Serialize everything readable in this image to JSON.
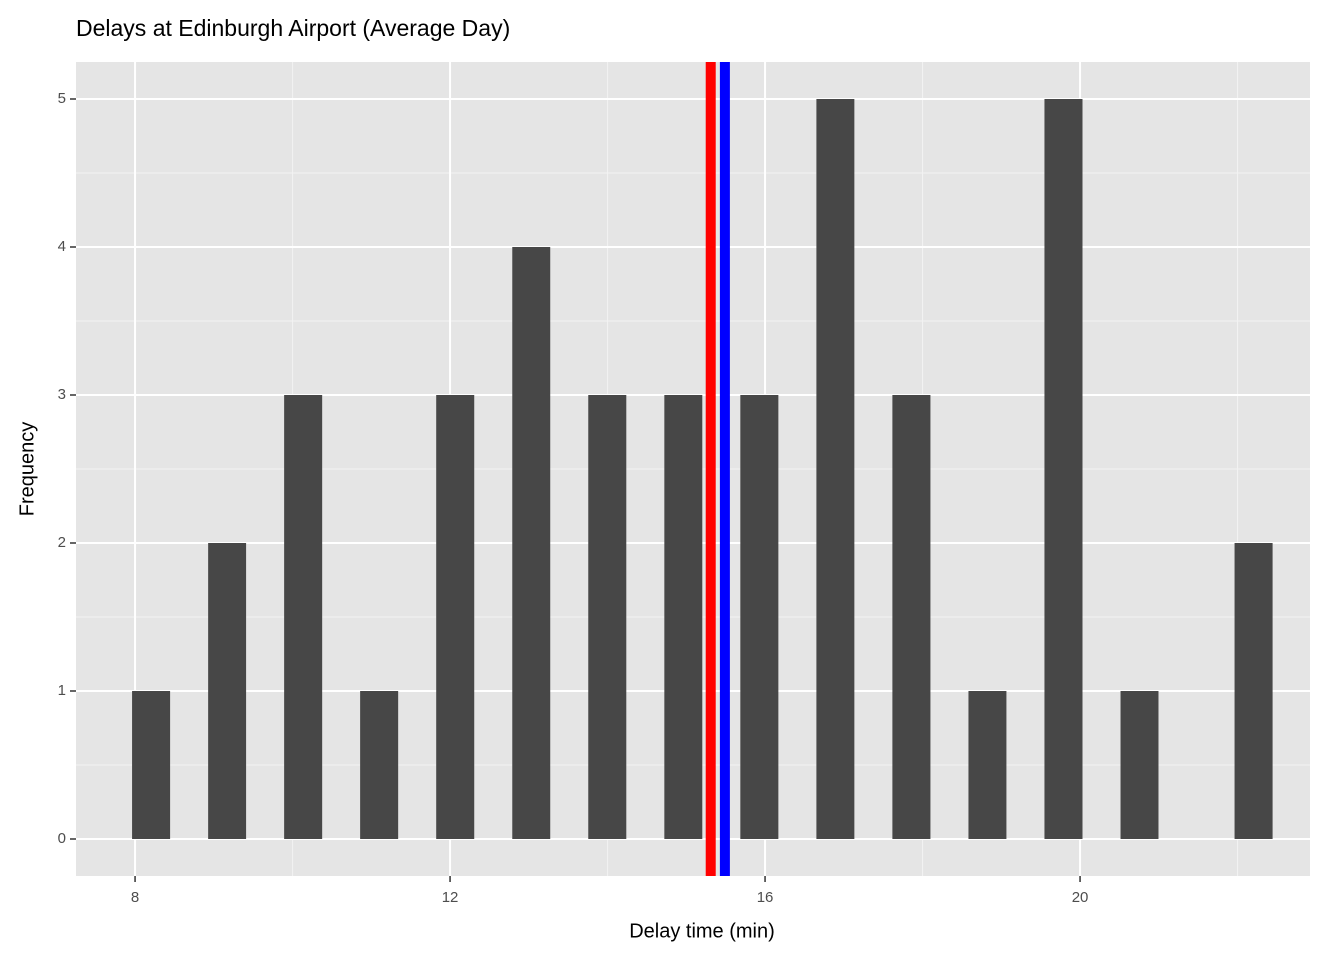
{
  "chart_data": {
    "type": "histogram",
    "title": "Delays at Edinburgh Airport (Average Day)",
    "x_label": "Delay time (min)",
    "y_label": "Frequency",
    "bins": [
      7.962,
      8.445,
      8.928,
      9.41,
      9.893,
      10.376,
      10.858,
      11.341,
      11.824,
      12.307,
      12.79,
      13.272,
      13.755,
      14.238,
      14.721,
      15.203,
      15.686,
      16.169,
      16.652,
      17.134,
      17.617,
      18.1,
      18.583,
      19.065,
      19.548,
      20.031,
      20.514,
      20.996,
      21.479,
      21.962,
      22.445
    ],
    "values": [
      1,
      0,
      2,
      0,
      3,
      0,
      1,
      0,
      3,
      0,
      4,
      0,
      3,
      0,
      3,
      0,
      3,
      0,
      5,
      0,
      3,
      0,
      1,
      0,
      5,
      0,
      1,
      0,
      0,
      2
    ],
    "color": "#474747",
    "vlines": [
      {
        "value": 15.31,
        "color": "#ff0000"
      },
      {
        "value": 15.49,
        "color": "#0000ff"
      }
    ],
    "xlim": [
      7.25,
      22.92
    ],
    "ylim": [
      -0.25,
      5.25
    ],
    "xticks": [
      8,
      12,
      16,
      20
    ],
    "yticks": [
      0,
      1,
      2,
      3,
      4,
      5
    ],
    "x_minor_grid": [
      10,
      14,
      18,
      22
    ],
    "y_minor_grid": [
      0.5,
      1.5,
      2.5,
      3.5,
      4.5
    ],
    "grid": true,
    "panel_color": "#e5e5e5"
  }
}
